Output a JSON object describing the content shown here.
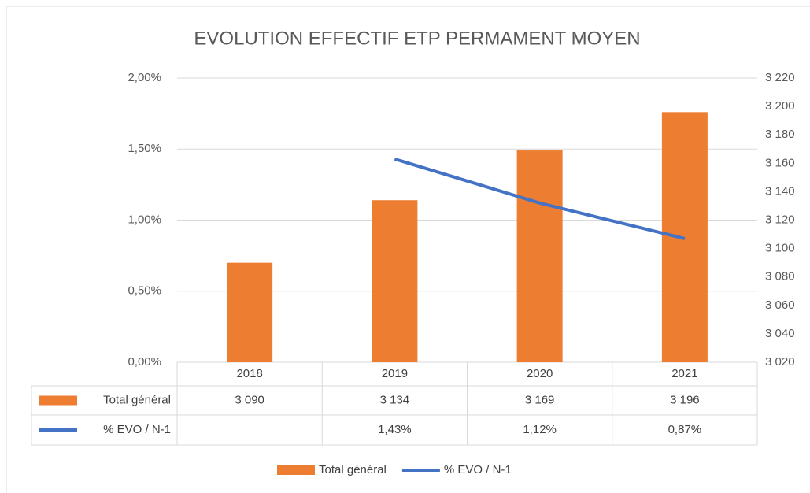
{
  "chart_data": {
    "type": "bar",
    "title": "EVOLUTION EFFECTIF ETP PERMAMENT MOYEN",
    "categories": [
      "2018",
      "2019",
      "2020",
      "2021"
    ],
    "series": [
      {
        "name": "Total général",
        "type": "bar",
        "color": "#ed7d31",
        "axis": "y2",
        "values": [
          3090,
          3134,
          3169,
          3196
        ],
        "value_labels": [
          "3 090",
          "3 134",
          "3 169",
          "3 196"
        ]
      },
      {
        "name": "% EVO / N-1",
        "type": "line",
        "color": "#4472c4",
        "values": [
          null,
          1.43,
          1.12,
          0.87
        ],
        "value_labels": [
          null,
          "1,43%",
          "1,12%",
          "0,87%"
        ]
      }
    ],
    "ylim": [
      0,
      2
    ],
    "yticks": [
      {
        "value": 0,
        "label": "0,00%"
      },
      {
        "value": 0.5,
        "label": "0,50%"
      },
      {
        "value": 1,
        "label": "1,00%"
      },
      {
        "value": 1.5,
        "label": "1,50%"
      },
      {
        "value": 2,
        "label": "2,00%"
      }
    ],
    "y2lim": [
      3020,
      3220
    ],
    "y2ticks": [
      {
        "value": 3020,
        "label": "3 020"
      },
      {
        "value": 3040,
        "label": "3 040"
      },
      {
        "value": 3060,
        "label": "3 060"
      },
      {
        "value": 3080,
        "label": "3 080"
      },
      {
        "value": 3100,
        "label": "3 100"
      },
      {
        "value": 3120,
        "label": "3 120"
      },
      {
        "value": 3140,
        "label": "3 140"
      },
      {
        "value": 3160,
        "label": "3 160"
      },
      {
        "value": 3180,
        "label": "3 180"
      },
      {
        "value": 3200,
        "label": "3 200"
      },
      {
        "value": 3220,
        "label": "3 220"
      }
    ],
    "grid": true,
    "legend": "bottom"
  }
}
